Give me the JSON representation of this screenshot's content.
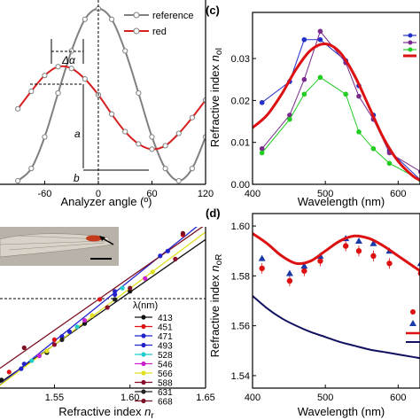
{
  "chart_data": [
    {
      "panel": "top-left",
      "type": "line",
      "xlabel": "Analyzer angle (º)",
      "x_ticks": [
        "-60",
        "0",
        "60",
        "120"
      ],
      "xlim": [
        -110,
        120
      ],
      "ylim": [
        0,
        1.05
      ],
      "legend_position": "top-right",
      "annotations": [
        "Δα",
        "a",
        "b"
      ],
      "series": [
        {
          "name": "reference",
          "color": "#808080",
          "x": [
            -90,
            -75,
            -60,
            -45,
            -30,
            -15,
            0,
            15,
            30,
            45,
            60,
            75,
            90,
            105,
            120
          ],
          "y": [
            0.02,
            0.09,
            0.27,
            0.52,
            0.76,
            0.94,
            1.0,
            0.94,
            0.76,
            0.52,
            0.27,
            0.09,
            0.02,
            0.09,
            0.27
          ]
        },
        {
          "name": "red",
          "color": "#d62020",
          "x": [
            -90,
            -75,
            -60,
            -45,
            -30,
            -15,
            0,
            15,
            30,
            45,
            60,
            75,
            90,
            105,
            120
          ],
          "y": [
            0.43,
            0.53,
            0.62,
            0.67,
            0.66,
            0.6,
            0.51,
            0.4,
            0.3,
            0.23,
            0.2,
            0.22,
            0.29,
            0.38,
            0.48
          ]
        }
      ]
    },
    {
      "panel": "(c)",
      "label": "(c)",
      "type": "line",
      "xlabel": "Wavelength (nm)",
      "ylabel": "Refractive index n_oI",
      "ylabel_main": "Refractive index ",
      "ylabel_var": "n",
      "ylabel_sub": "oI",
      "x_ticks": [
        "400",
        "500",
        "600"
      ],
      "y_ticks": [
        "0.00",
        "0.01",
        "0.02",
        "0.03"
      ],
      "xlim": [
        400,
        630
      ],
      "ylim": [
        0,
        0.041
      ],
      "series": [
        {
          "color": "#2230c8",
          "x": [
            413,
            451,
            471,
            493,
            528,
            546,
            566,
            588,
            631
          ],
          "y": [
            0.0195,
            0.0245,
            0.0345,
            0.0345,
            0.0295,
            0.0235,
            0.0165,
            0.008,
            0.001
          ]
        },
        {
          "color": "#7a2a8c",
          "x": [
            413,
            451,
            471,
            493,
            528,
            546,
            566,
            588,
            631
          ],
          "y": [
            0.0085,
            0.0165,
            0.025,
            0.0365,
            0.029,
            0.021,
            0.0155,
            0.0075,
            0.003
          ]
        },
        {
          "color": "#22cc22",
          "x": [
            413,
            451,
            471,
            493,
            528,
            546,
            566,
            588,
            631
          ],
          "y": [
            0.0075,
            0.0155,
            0.0215,
            0.0255,
            0.0215,
            0.0125,
            0.0085,
            0.005,
            0.001
          ]
        },
        {
          "color": "#dd1111",
          "x": [
            400,
            420,
            440,
            460,
            480,
            500,
            520,
            540,
            560,
            580,
            600,
            620,
            630
          ],
          "y": [
            0.0135,
            0.0165,
            0.0215,
            0.0275,
            0.032,
            0.0335,
            0.0315,
            0.026,
            0.0185,
            0.011,
            0.0055,
            0.002,
            0.001
          ]
        }
      ]
    },
    {
      "panel": "bottom-left",
      "type": "scatter",
      "xlabel": "Refractive index n_r",
      "xlabel_main": "Refractive index ",
      "xlabel_var": "n",
      "xlabel_sub": "r",
      "x_ticks": [
        "1.55",
        "1.60",
        "1.65"
      ],
      "xlim": [
        1.514,
        1.65
      ],
      "ylim": [
        0,
        1
      ],
      "legend_title": "λ(nm)",
      "legend_position": "right",
      "series": [
        {
          "name": "413",
          "color": "#111111",
          "x": [
            1.515,
            1.545,
            1.57,
            1.6
          ],
          "y": [
            0.05,
            0.22,
            0.4,
            0.6
          ]
        },
        {
          "name": "451",
          "color": "#dd1111",
          "x": [
            1.52,
            1.55,
            1.58,
            1.635
          ],
          "y": [
            0.1,
            0.3,
            0.55,
            0.95
          ]
        },
        {
          "name": "471",
          "color": "#2222cc",
          "x": [
            1.528,
            1.555,
            1.59,
            1.625
          ],
          "y": [
            0.12,
            0.32,
            0.58,
            0.85
          ]
        },
        {
          "name": "493",
          "color": "#2222cc",
          "x": [
            1.53,
            1.56,
            1.59,
            1.62
          ],
          "y": [
            0.15,
            0.35,
            0.6,
            0.82
          ]
        },
        {
          "name": "528",
          "color": "#22cccc",
          "x": [
            1.535,
            1.565,
            1.595
          ],
          "y": [
            0.17,
            0.38,
            0.62
          ]
        },
        {
          "name": "546",
          "color": "#cc22cc",
          "x": [
            1.54,
            1.57,
            1.61
          ],
          "y": [
            0.2,
            0.42,
            0.68
          ]
        },
        {
          "name": "566",
          "color": "#e0e020",
          "x": [
            1.545,
            1.575,
            1.615
          ],
          "y": [
            0.23,
            0.45,
            0.72
          ]
        },
        {
          "name": "588",
          "color": "#8b0a2a",
          "x": [
            1.55,
            1.585,
            1.63
          ],
          "y": [
            0.27,
            0.5,
            0.8
          ]
        },
        {
          "name": "631",
          "color": "#222222",
          "x": [
            1.555,
            1.59
          ],
          "y": [
            0.3,
            0.55
          ]
        },
        {
          "name": "668",
          "color": "#7a1022",
          "x": [
            1.53,
            1.6,
            1.635
          ],
          "y": [
            0.25,
            0.62,
            0.96
          ]
        }
      ]
    },
    {
      "panel": "(d)",
      "label": "(d)",
      "type": "scatter",
      "xlabel": "Wavelength (nm)",
      "ylabel": "Refractive index n_oR",
      "ylabel_main": "Refractive index ",
      "ylabel_var": "n",
      "ylabel_sub": "oR",
      "x_ticks": [
        "400",
        "500",
        "600"
      ],
      "y_ticks": [
        "1.54",
        "1.56",
        "1.58",
        "1.60"
      ],
      "xlim": [
        400,
        630
      ],
      "ylim": [
        1.535,
        1.605
      ],
      "series": [
        {
          "color": "#dd1111",
          "kind": "points",
          "x": [
            413,
            451,
            471,
            493,
            528,
            546,
            566,
            588,
            631
          ],
          "y": [
            1.583,
            1.578,
            1.582,
            1.586,
            1.592,
            1.59,
            1.588,
            1.585,
            1.581
          ]
        },
        {
          "color": "#1a3aa8",
          "kind": "triangles",
          "x": [
            413,
            451,
            471,
            493,
            528,
            546,
            566,
            588,
            631
          ],
          "y": [
            1.587,
            1.581,
            1.584,
            1.588,
            1.595,
            1.594,
            1.593,
            1.59,
            1.585
          ]
        },
        {
          "color": "#dd1111",
          "kind": "line",
          "x": [
            400,
            420,
            440,
            460,
            480,
            500,
            520,
            540,
            560,
            580,
            600,
            620,
            630
          ],
          "y": [
            1.597,
            1.593,
            1.588,
            1.585,
            1.586,
            1.59,
            1.594,
            1.596,
            1.595,
            1.592,
            1.588,
            1.584,
            1.582
          ]
        },
        {
          "color": "#101060",
          "kind": "line",
          "x": [
            400,
            420,
            440,
            460,
            480,
            500,
            520,
            540,
            560,
            580,
            600,
            620,
            630
          ],
          "y": [
            1.572,
            1.567,
            1.563,
            1.56,
            1.5575,
            1.5555,
            1.5535,
            1.552,
            1.5505,
            1.5495,
            1.5485,
            1.5475,
            1.547
          ]
        }
      ]
    }
  ]
}
